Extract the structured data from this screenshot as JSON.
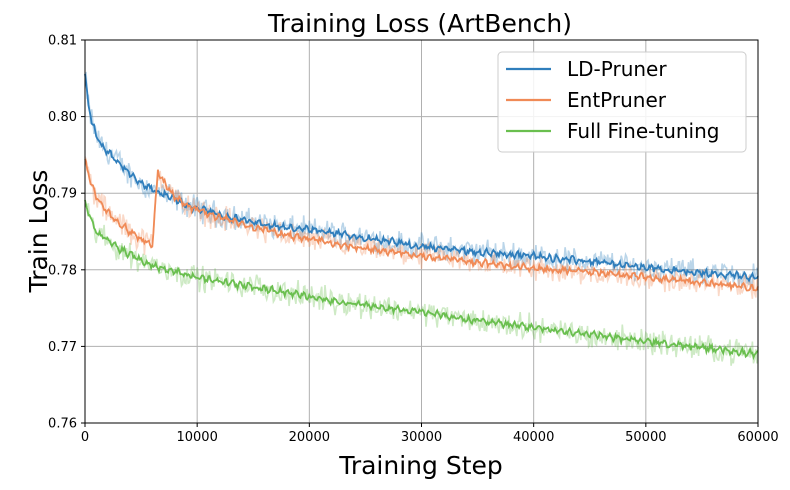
{
  "chart_data": {
    "type": "line",
    "title": "Training Loss (ArtBench)",
    "xlabel": "Training Step",
    "ylabel": "Train Loss",
    "xlim": [
      0,
      60000
    ],
    "ylim": [
      0.76,
      0.81
    ],
    "xticks": [
      0,
      10000,
      20000,
      30000,
      40000,
      50000,
      60000
    ],
    "xtick_labels": [
      "0",
      "10000",
      "20000",
      "30000",
      "40000",
      "50000",
      "60000"
    ],
    "yticks": [
      0.76,
      0.77,
      0.78,
      0.79,
      0.8,
      0.81
    ],
    "ytick_labels": [
      "0.76",
      "0.77",
      "0.78",
      "0.79",
      "0.80",
      "0.81"
    ],
    "grid": true,
    "legend_position": "top-right",
    "series": [
      {
        "name": "LD-Pruner",
        "color": "#2f7ebc",
        "x": [
          0,
          300,
          600,
          1000,
          1500,
          2000,
          3000,
          4000,
          5000,
          6000,
          7000,
          8000,
          9000,
          10000,
          12000,
          14000,
          16000,
          18000,
          20000,
          22000,
          24000,
          26000,
          28000,
          30000,
          32000,
          34000,
          36000,
          38000,
          40000,
          42000,
          44000,
          46000,
          48000,
          50000,
          52000,
          54000,
          56000,
          58000,
          60000
        ],
        "values": [
          0.8055,
          0.8015,
          0.7995,
          0.7975,
          0.7962,
          0.7955,
          0.794,
          0.7925,
          0.7912,
          0.7905,
          0.7898,
          0.7892,
          0.7885,
          0.788,
          0.7872,
          0.7865,
          0.786,
          0.7855,
          0.7852,
          0.7848,
          0.7844,
          0.784,
          0.7835,
          0.783,
          0.7828,
          0.7825,
          0.7822,
          0.782,
          0.7818,
          0.7815,
          0.7812,
          0.781,
          0.7806,
          0.7803,
          0.78,
          0.7797,
          0.7795,
          0.7793,
          0.779
        ]
      },
      {
        "name": "EntPruner",
        "color": "#f08a56",
        "x": [
          0,
          300,
          600,
          1000,
          2000,
          3000,
          4000,
          5000,
          6000,
          6500,
          7000,
          7500,
          8000,
          9000,
          10000,
          12000,
          14000,
          16000,
          18000,
          20000,
          22000,
          24000,
          26000,
          28000,
          30000,
          32000,
          34000,
          36000,
          38000,
          40000,
          42000,
          44000,
          46000,
          48000,
          50000,
          52000,
          54000,
          56000,
          58000,
          60000
        ],
        "values": [
          0.7945,
          0.7925,
          0.791,
          0.7895,
          0.7875,
          0.7862,
          0.785,
          0.784,
          0.7832,
          0.793,
          0.7915,
          0.7905,
          0.7895,
          0.7885,
          0.7878,
          0.7868,
          0.786,
          0.7852,
          0.7845,
          0.784,
          0.7835,
          0.783,
          0.7826,
          0.7822,
          0.7818,
          0.7815,
          0.7812,
          0.7808,
          0.7805,
          0.7802,
          0.78,
          0.7798,
          0.7796,
          0.7793,
          0.779,
          0.7787,
          0.7785,
          0.7782,
          0.7779,
          0.7775
        ]
      },
      {
        "name": "Full Fine-tuning",
        "color": "#6abf4f",
        "x": [
          0,
          300,
          600,
          1000,
          2000,
          3000,
          4000,
          5000,
          6000,
          8000,
          10000,
          12000,
          14000,
          16000,
          18000,
          20000,
          22000,
          24000,
          26000,
          28000,
          30000,
          32000,
          34000,
          36000,
          38000,
          40000,
          42000,
          44000,
          46000,
          48000,
          50000,
          52000,
          54000,
          56000,
          58000,
          60000
        ],
        "values": [
          0.789,
          0.7875,
          0.7862,
          0.785,
          0.7838,
          0.7828,
          0.782,
          0.7812,
          0.7806,
          0.7798,
          0.779,
          0.7785,
          0.778,
          0.7775,
          0.777,
          0.7765,
          0.776,
          0.7756,
          0.7752,
          0.7748,
          0.7745,
          0.774,
          0.7735,
          0.7732,
          0.7728,
          0.7725,
          0.772,
          0.7717,
          0.7714,
          0.771,
          0.7707,
          0.7703,
          0.77,
          0.7697,
          0.7693,
          0.769
        ]
      }
    ]
  }
}
